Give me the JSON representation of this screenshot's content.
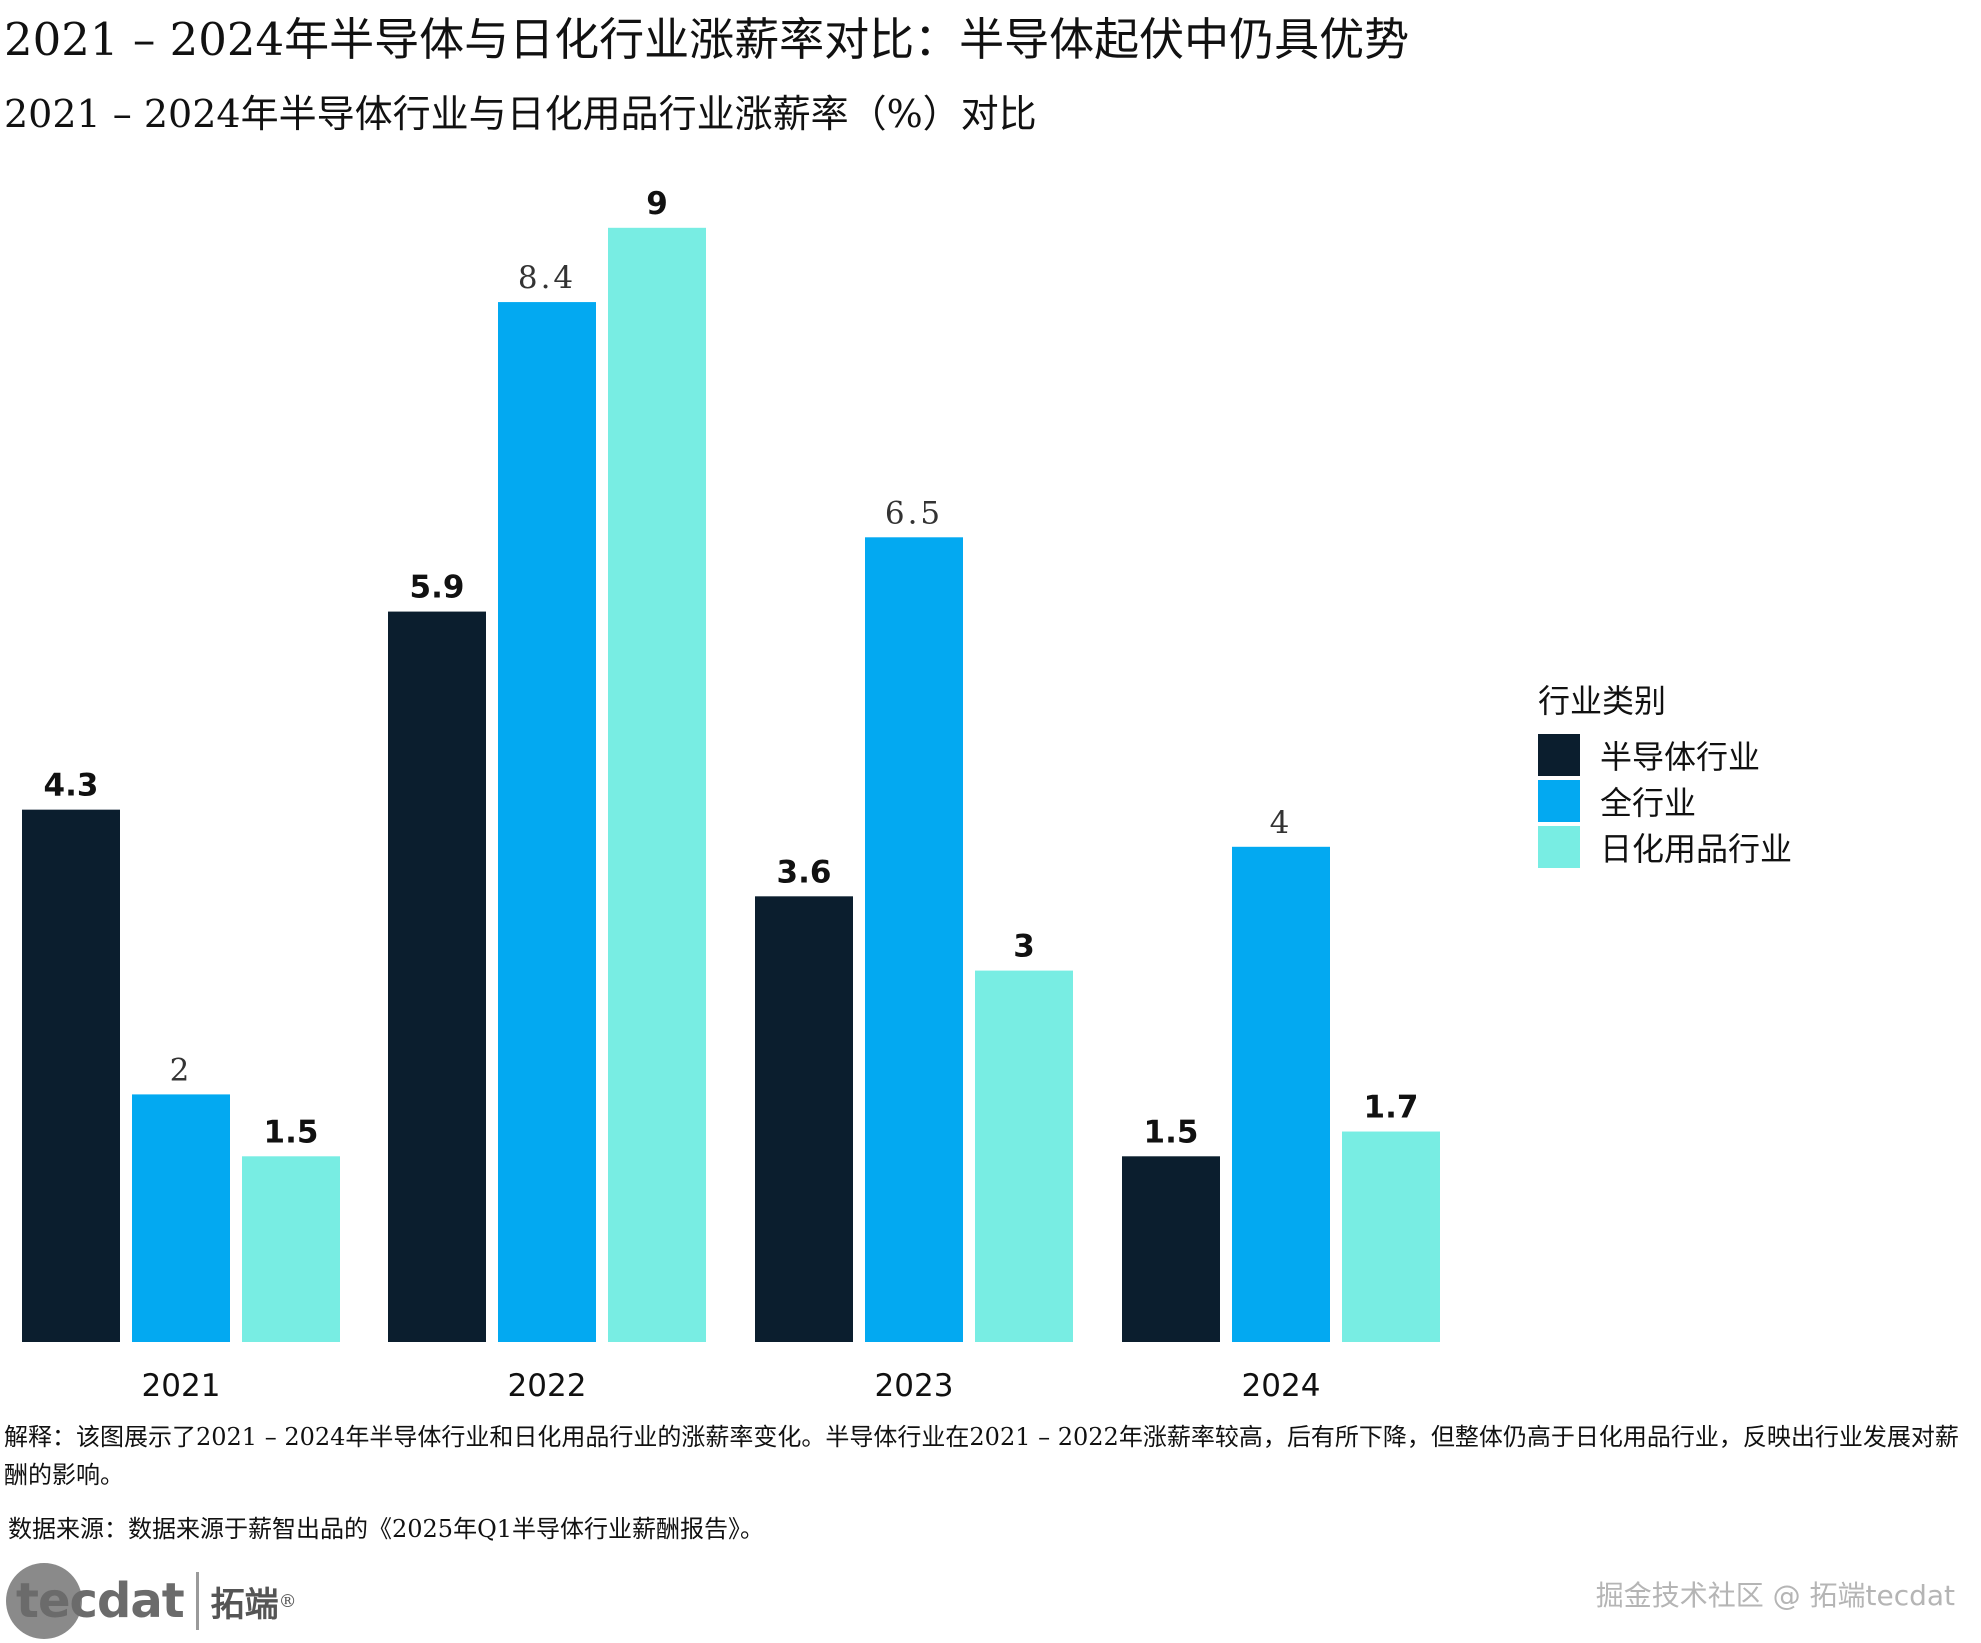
{
  "title": "2021 – 2024年半导体与日化行业涨薪率对比：半导体起伏中仍具优势",
  "subtitle": "2021 – 2024年半导体行业与日化用品行业涨薪率（%）对比",
  "legend": {
    "title": "行业类别",
    "items": [
      {
        "label": "半导体行业",
        "color": "#0b1e2e"
      },
      {
        "label": "全行业",
        "color": "#03a9f1"
      },
      {
        "label": "日化用品行业",
        "color": "#78ede3"
      }
    ]
  },
  "chart_data": {
    "type": "bar",
    "categories": [
      "2021",
      "2022",
      "2023",
      "2024"
    ],
    "series": [
      {
        "name": "半导体行业",
        "color": "#0b1e2e",
        "values": [
          4.3,
          5.9,
          3.6,
          1.5
        ],
        "labels": [
          "4.3",
          "5.9",
          "3.6",
          "1.5"
        ]
      },
      {
        "name": "全行业",
        "color": "#03a9f1",
        "values": [
          2,
          8.4,
          6.5,
          4
        ],
        "labels": [
          "2",
          "8.4",
          "6.5",
          "4"
        ]
      },
      {
        "name": "日化用品行业",
        "color": "#78ede3",
        "values": [
          1.5,
          9,
          3,
          1.7
        ],
        "labels": [
          "1.5",
          "9",
          "3",
          "1.7"
        ]
      }
    ],
    "ylim": [
      0,
      9
    ],
    "grid": false,
    "legend_position": "right"
  },
  "caption": "解释：该图展示了2021 – 2024年半导体行业和日化用品行业的涨薪率变化。半导体行业在2021 – 2022年涨薪率较高，后有所下降，但整体仍高于日化用品行业，反映出行业发展对薪酬的影响。",
  "source": "数据来源：数据来源于薪智出品的《2025年Q1半导体行业薪酬报告》。",
  "logo": {
    "word": "tecdat",
    "cn": "拓端",
    "reg": "®"
  },
  "watermark": "掘金技术社区 @ 拓端tecdat"
}
